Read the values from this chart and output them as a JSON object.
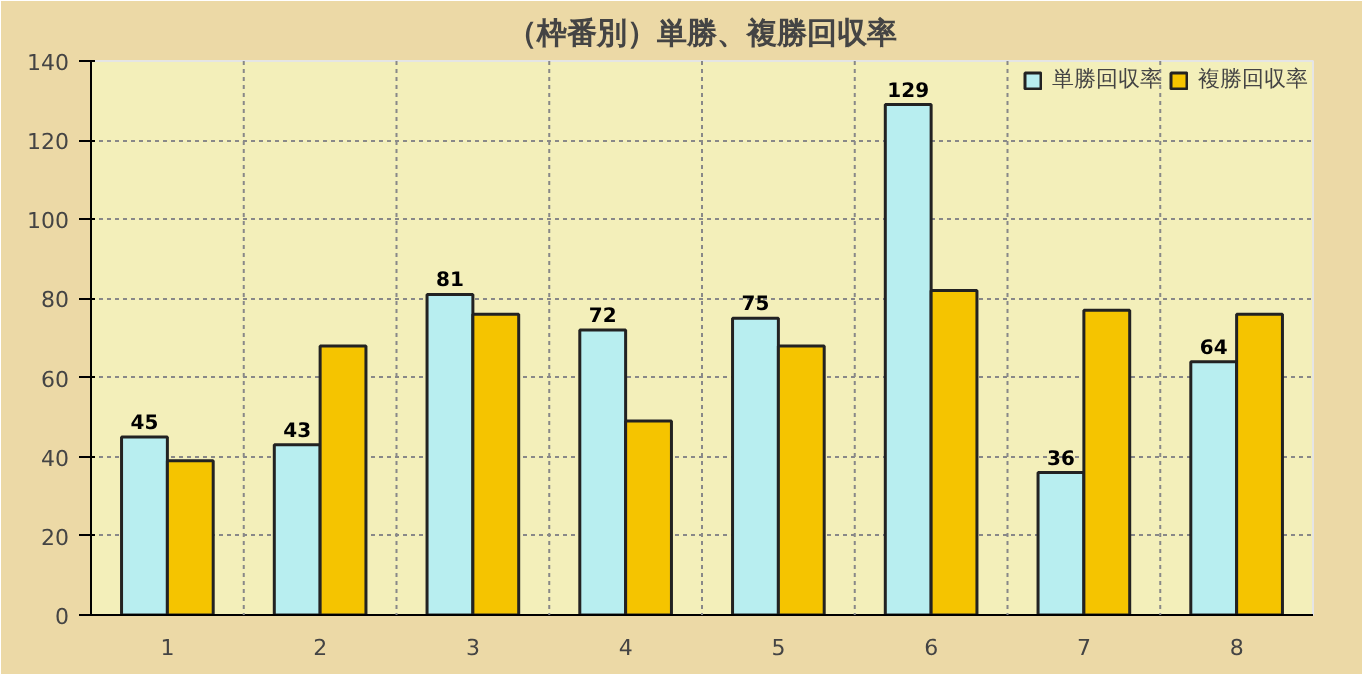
{
  "chart_data": {
    "type": "bar",
    "title": "（枠番別）単勝、複勝回収率",
    "categories": [
      "1",
      "2",
      "3",
      "4",
      "5",
      "6",
      "7",
      "8"
    ],
    "series": [
      {
        "name": "単勝回収率",
        "color": "#b8eef0",
        "values": [
          45,
          43,
          81,
          72,
          75,
          129,
          36,
          64
        ],
        "value_labels": [
          "45",
          "43",
          "81",
          "72",
          "75",
          "129",
          "36",
          "64"
        ]
      },
      {
        "name": "複勝回収率",
        "color": "#f5c400",
        "values": [
          39,
          68,
          76,
          49,
          68,
          82,
          77,
          76
        ]
      }
    ],
    "ylim": [
      0,
      140
    ],
    "yticks": [
      0,
      20,
      40,
      60,
      80,
      100,
      120,
      140
    ],
    "grid": true,
    "legend": "top right"
  }
}
